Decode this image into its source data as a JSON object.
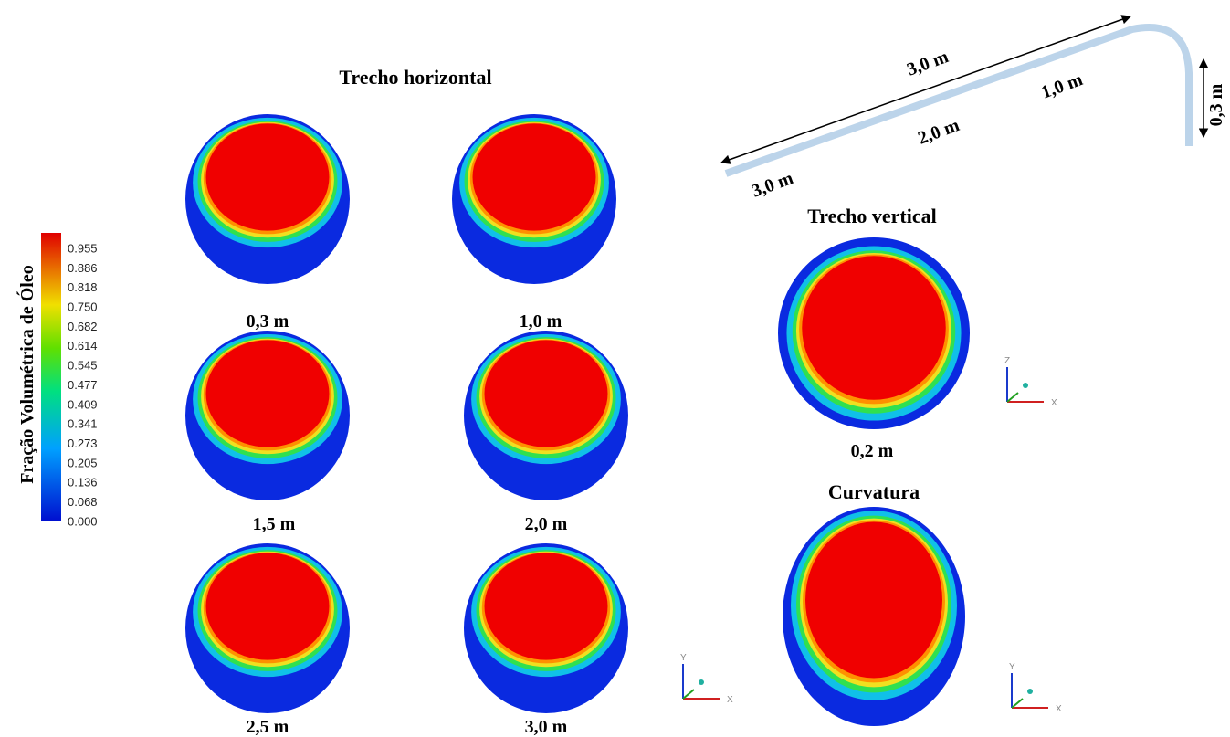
{
  "horizontal": {
    "title": "Trecho horizontal",
    "sections": [
      "0,3 m",
      "1,0 m",
      "1,5 m",
      "2,0 m",
      "2,5 m",
      "3,0 m"
    ]
  },
  "vertical": {
    "title": "Trecho vertical",
    "label": "0,2 m"
  },
  "curvature": {
    "title": "Curvatura"
  },
  "colorbar": {
    "title": "Fração Volumétrica de Óleo",
    "ticks": [
      "0.955",
      "0.886",
      "0.818",
      "0.750",
      "0.682",
      "0.614",
      "0.545",
      "0.477",
      "0.409",
      "0.341",
      "0.273",
      "0.205",
      "0.136",
      "0.068",
      "0.000"
    ]
  },
  "pipe": {
    "labels": [
      "3,0 m",
      "1,0 m",
      "2,0 m",
      "3,0 m",
      "0,3 m"
    ]
  },
  "triads": [
    {
      "up": "Z",
      "right": "X"
    },
    {
      "up": "Y",
      "right": "X"
    },
    {
      "up": "Y",
      "right": "X"
    }
  ]
}
